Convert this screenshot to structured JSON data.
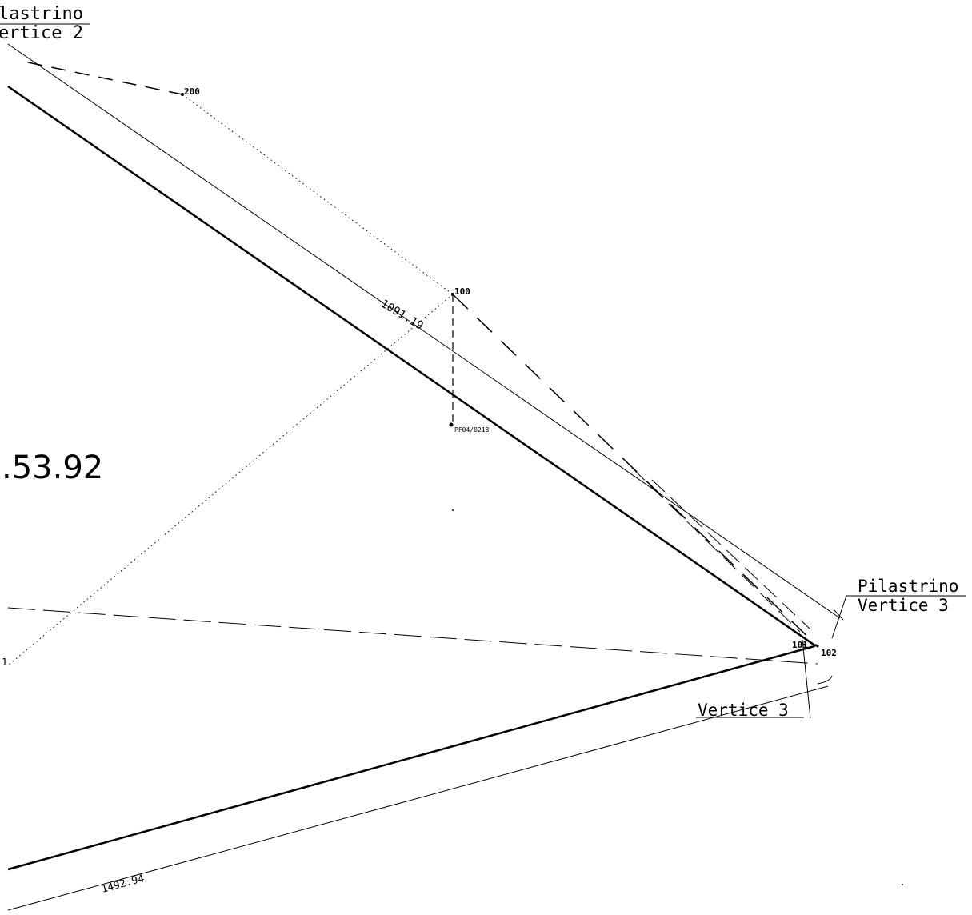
{
  "labels": {
    "corner_top_left_line1": "lastrino",
    "corner_top_left_line2": "ertice 2",
    "point_200": "200",
    "point_100": "100",
    "point_ref": "PF04/0218",
    "dim_upper": "1091.19",
    "area_value": ".53.92",
    "pilastrino_right_line1": "Pilastrino",
    "pilastrino_right_line2": "Vertice 3",
    "point_101": "101",
    "point_102": "102",
    "vertice_3_lower": "Vertice 3",
    "dim_lower": "1492.94",
    "left_edge_mark": "1"
  },
  "colors": {
    "ink": "#000000",
    "paper": "#ffffff"
  }
}
